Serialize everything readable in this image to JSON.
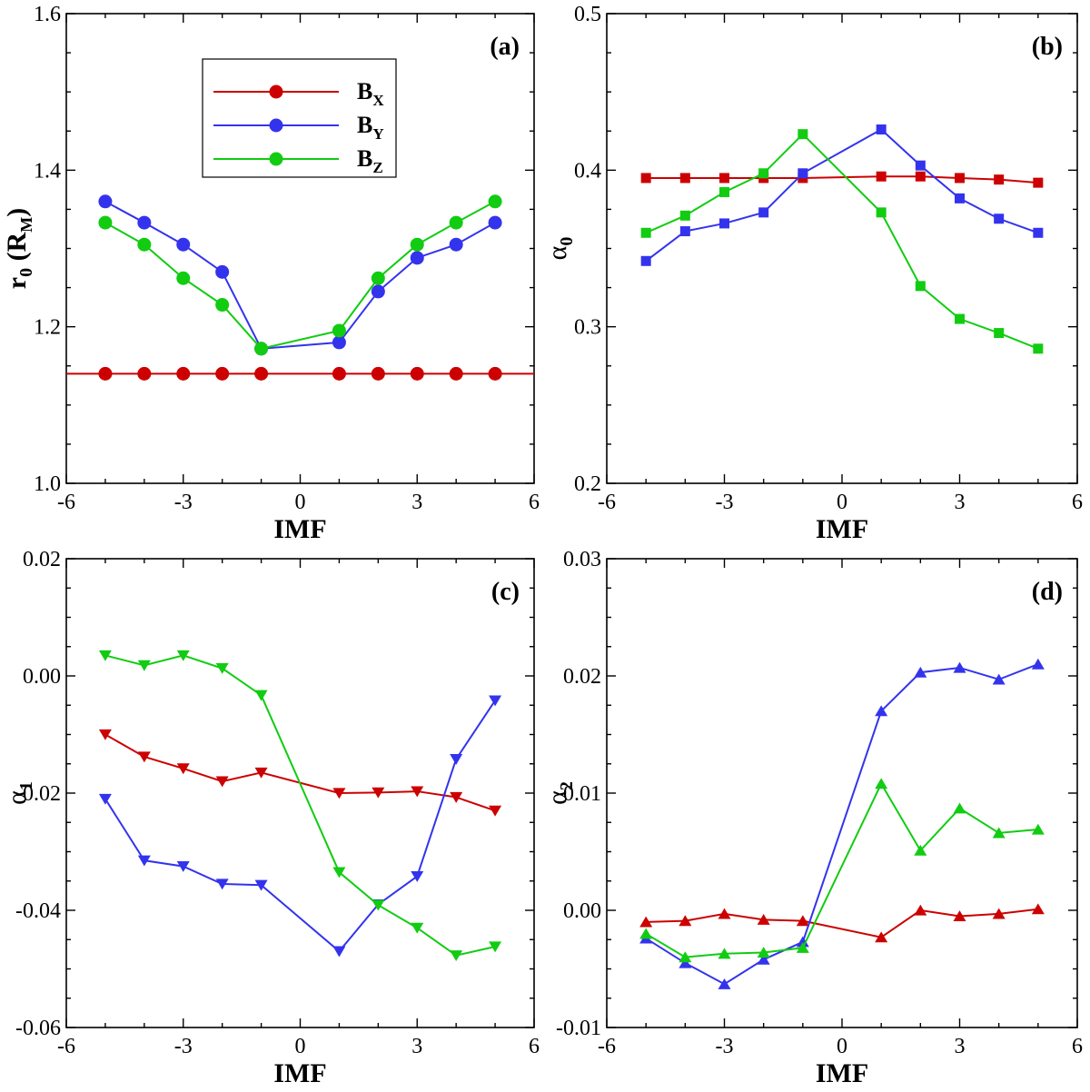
{
  "colors": {
    "Bx": "#cc0000",
    "By": "#3333ee",
    "Bz": "#11cc11"
  },
  "legend": [
    {
      "key": "Bx",
      "base": "B",
      "sub": "X"
    },
    {
      "key": "By",
      "base": "B",
      "sub": "Y"
    },
    {
      "key": "Bz",
      "base": "B",
      "sub": "Z"
    }
  ],
  "chart_data": [
    {
      "id": "a",
      "type": "line",
      "panel_label": "(a)",
      "marker": "circle",
      "xlabel": "IMF",
      "ylabel": {
        "base": "r",
        "sub": "0",
        "rest": " (R",
        "rest_sub": "M",
        "tail": ")"
      },
      "xlim": [
        -6,
        6
      ],
      "ylim": [
        1.0,
        1.6
      ],
      "xticks": [
        -6,
        -3,
        0,
        3,
        6
      ],
      "yticks": [
        1.0,
        1.2,
        1.4,
        1.6
      ],
      "ytick_labels": [
        "1.0",
        "1.2",
        "1.4",
        "1.6"
      ],
      "legend_placement": "top-center",
      "x": [
        -5,
        -4,
        -3,
        -2,
        -1,
        1,
        2,
        3,
        4,
        5
      ],
      "series": [
        {
          "key": "Bx",
          "name": "Bx",
          "values": [
            1.14,
            1.14,
            1.14,
            1.14,
            1.14,
            1.14,
            1.14,
            1.14,
            1.14,
            1.14
          ],
          "extend_line": [
            -6,
            6
          ]
        },
        {
          "key": "By",
          "name": "By",
          "values": [
            1.36,
            1.333,
            1.305,
            1.27,
            1.172,
            1.18,
            1.245,
            1.288,
            1.305,
            1.333
          ]
        },
        {
          "key": "Bz",
          "name": "Bz",
          "values": [
            1.333,
            1.305,
            1.262,
            1.228,
            1.172,
            1.195,
            1.262,
            1.305,
            1.333,
            1.36
          ]
        }
      ]
    },
    {
      "id": "b",
      "type": "line",
      "panel_label": "(b)",
      "marker": "square",
      "xlabel": "IMF",
      "ylabel": {
        "base": "α",
        "sub": "0"
      },
      "xlim": [
        -6,
        6
      ],
      "ylim": [
        0.2,
        0.5
      ],
      "xticks": [
        -6,
        -3,
        0,
        3,
        6
      ],
      "yticks": [
        0.2,
        0.3,
        0.4,
        0.5
      ],
      "ytick_labels": [
        "0.2",
        "0.3",
        "0.4",
        "0.5"
      ],
      "x": [
        -5,
        -4,
        -3,
        -2,
        -1,
        1,
        2,
        3,
        4,
        5
      ],
      "series": [
        {
          "key": "Bx",
          "name": "Bx",
          "values": [
            0.395,
            0.395,
            0.395,
            0.395,
            0.395,
            0.396,
            0.396,
            0.395,
            0.394,
            0.392
          ]
        },
        {
          "key": "By",
          "name": "By",
          "values": [
            0.342,
            0.361,
            0.366,
            0.373,
            0.398,
            0.426,
            0.403,
            0.382,
            0.369,
            0.36
          ]
        },
        {
          "key": "Bz",
          "name": "Bz",
          "values": [
            0.36,
            0.371,
            0.386,
            0.398,
            0.423,
            0.373,
            0.326,
            0.305,
            0.296,
            0.286
          ]
        }
      ]
    },
    {
      "id": "c",
      "type": "line",
      "panel_label": "(c)",
      "marker": "triangle-down",
      "xlabel": "IMF",
      "ylabel": {
        "base": "α",
        "sub": "1"
      },
      "xlim": [
        -6,
        6
      ],
      "ylim": [
        -0.06,
        0.02
      ],
      "xticks": [
        -6,
        -3,
        0,
        3,
        6
      ],
      "yticks": [
        -0.06,
        -0.04,
        -0.02,
        0.0,
        0.02
      ],
      "ytick_labels": [
        "-0.06",
        "-0.04",
        "-0.02",
        "0.00",
        "0.02"
      ],
      "x": [
        -5,
        -4,
        -3,
        -2,
        -1,
        1,
        2,
        3,
        4,
        5
      ],
      "series": [
        {
          "key": "Bx",
          "name": "Bx",
          "values": [
            -0.01,
            -0.0138,
            -0.0158,
            -0.018,
            -0.0165,
            -0.02,
            -0.0199,
            -0.0197,
            -0.0207,
            -0.023
          ]
        },
        {
          "key": "By",
          "name": "By",
          "values": [
            -0.021,
            -0.0315,
            -0.0325,
            -0.0355,
            -0.0357,
            -0.047,
            -0.039,
            -0.0342,
            -0.0142,
            -0.0042
          ]
        },
        {
          "key": "Bz",
          "name": "Bz",
          "values": [
            0.0035,
            0.0018,
            0.0035,
            0.0013,
            -0.0033,
            -0.0335,
            -0.0391,
            -0.043,
            -0.0477,
            -0.0462
          ]
        }
      ]
    },
    {
      "id": "d",
      "type": "line",
      "panel_label": "(d)",
      "marker": "triangle-up",
      "xlabel": "IMF",
      "ylabel": {
        "base": "α",
        "sub": "2"
      },
      "xlim": [
        -6,
        6
      ],
      "ylim": [
        -0.01,
        0.03
      ],
      "xticks": [
        -6,
        -3,
        0,
        3,
        6
      ],
      "yticks": [
        -0.01,
        0.0,
        0.01,
        0.02,
        0.03
      ],
      "ytick_labels": [
        "-0.01",
        "0.00",
        "0.01",
        "0.02",
        "0.03"
      ],
      "x": [
        -5,
        -4,
        -3,
        -2,
        -1,
        1,
        2,
        3,
        4,
        5
      ],
      "series": [
        {
          "key": "Bx",
          "name": "Bx",
          "values": [
            -0.001,
            -0.0009,
            -0.0003,
            -0.0008,
            -0.0009,
            -0.0023,
            0.0,
            -0.0005,
            -0.0003,
            0.0001
          ]
        },
        {
          "key": "By",
          "name": "By",
          "values": [
            -0.0024,
            -0.0045,
            -0.0063,
            -0.0042,
            -0.0027,
            0.017,
            0.0203,
            0.0207,
            0.0197,
            0.021
          ]
        },
        {
          "key": "Bz",
          "name": "Bz",
          "values": [
            -0.002,
            -0.004,
            -0.0037,
            -0.0036,
            -0.0032,
            0.0108,
            0.0051,
            0.0087,
            0.0066,
            0.0069
          ]
        }
      ]
    }
  ]
}
